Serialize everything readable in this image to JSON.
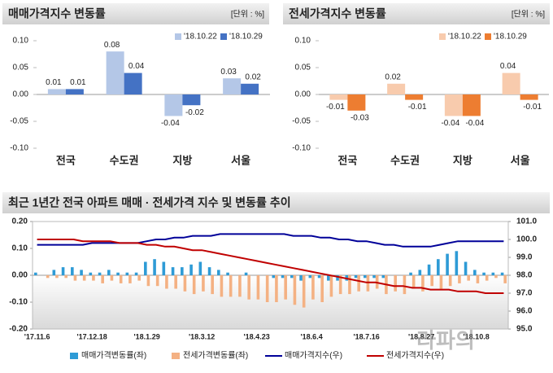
{
  "chart_data": [
    {
      "type": "bar",
      "title": "매매가격지수 변동률",
      "unit": "[단위 : %]",
      "categories": [
        "전국",
        "수도권",
        "지방",
        "서울"
      ],
      "series": [
        {
          "name": "'18.10.22",
          "color": "#b4c7e7",
          "values": [
            0.01,
            0.08,
            -0.04,
            0.03
          ]
        },
        {
          "name": "'18.10.29",
          "color": "#4472c4",
          "values": [
            0.01,
            0.04,
            -0.02,
            0.02
          ]
        }
      ],
      "ylim": [
        -0.1,
        0.1
      ],
      "yticks": [
        {
          "value": -0.1,
          "label": "-0.10"
        },
        {
          "value": -0.05,
          "label": "-0.05"
        },
        {
          "value": 0,
          "label": "0.00"
        },
        {
          "value": 0.05,
          "label": "0.05"
        },
        {
          "value": 0.1,
          "label": "0.10"
        }
      ]
    },
    {
      "type": "bar",
      "title": "전세가격지수 변동률",
      "unit": "[단위 : %]",
      "categories": [
        "전국",
        "수도권",
        "지방",
        "서울"
      ],
      "series": [
        {
          "name": "'18.10.22",
          "color": "#f8cbad",
          "values": [
            -0.01,
            0.02,
            -0.04,
            0.04
          ]
        },
        {
          "name": "'18.10.29",
          "color": "#ed7d31",
          "values": [
            -0.03,
            -0.01,
            -0.04,
            -0.01
          ]
        }
      ],
      "ylim": [
        -0.1,
        0.1
      ],
      "yticks": [
        {
          "value": -0.1,
          "label": "-0.10"
        },
        {
          "value": -0.05,
          "label": "-0.05"
        },
        {
          "value": 0,
          "label": "0.00"
        },
        {
          "value": 0.05,
          "label": "0.05"
        },
        {
          "value": 0.1,
          "label": "0.10"
        }
      ]
    },
    {
      "type": "combo",
      "title": "최근 1년간 전국 아파트 매매 · 전세가격 지수 및 변동률 추이",
      "categories": [
        "'17.11.6",
        null,
        null,
        null,
        null,
        null,
        "'17.12.18",
        null,
        null,
        null,
        null,
        null,
        "'18.1.29",
        null,
        null,
        null,
        null,
        null,
        "'18.3.12",
        null,
        null,
        null,
        null,
        null,
        "'18.4.23",
        null,
        null,
        null,
        null,
        null,
        "'18.6.4",
        null,
        null,
        null,
        null,
        null,
        "'18.7.16",
        null,
        null,
        null,
        null,
        null,
        "'18.8.27",
        null,
        null,
        null,
        null,
        null,
        "'18.10.8",
        null,
        null,
        null
      ],
      "series": [
        {
          "name": "매매가격변동률(좌)",
          "type": "bar",
          "color": "#2e9bd6",
          "values": [
            0.01,
            0.0,
            0.02,
            0.03,
            0.03,
            0.02,
            0.01,
            0.01,
            0.02,
            0.01,
            0.01,
            0.01,
            0.05,
            0.06,
            0.05,
            0.03,
            0.03,
            0.04,
            0.05,
            0.03,
            0.02,
            0.01,
            0.0,
            0.01,
            0.0,
            0.0,
            -0.01,
            -0.01,
            -0.01,
            -0.02,
            -0.01,
            -0.01,
            -0.02,
            -0.02,
            -0.02,
            -0.01,
            -0.01,
            -0.01,
            -0.01,
            0.0,
            0.0,
            0.01,
            0.02,
            0.04,
            0.06,
            0.08,
            0.09,
            0.05,
            0.02,
            0.01,
            0.01,
            0.01
          ]
        },
        {
          "name": "전세가격변동률(좌)",
          "type": "bar",
          "color": "#f4b183",
          "values": [
            0.0,
            -0.01,
            -0.01,
            -0.01,
            -0.02,
            -0.02,
            -0.02,
            -0.03,
            -0.02,
            -0.03,
            -0.03,
            -0.02,
            -0.04,
            -0.04,
            -0.05,
            -0.05,
            -0.06,
            -0.07,
            -0.06,
            -0.07,
            -0.08,
            -0.08,
            -0.08,
            -0.09,
            -0.09,
            -0.1,
            -0.1,
            -0.09,
            -0.11,
            -0.12,
            -0.09,
            -0.1,
            -0.08,
            -0.07,
            -0.07,
            -0.06,
            -0.06,
            -0.05,
            -0.07,
            -0.06,
            -0.07,
            -0.05,
            -0.06,
            -0.04,
            -0.05,
            -0.04,
            -0.03,
            -0.02,
            -0.03,
            -0.02,
            -0.01,
            -0.03
          ]
        },
        {
          "name": "매매가격지수(우)",
          "type": "line",
          "axis": "y2",
          "color": "#000099",
          "values": [
            99.7,
            99.7,
            99.7,
            99.7,
            99.7,
            99.7,
            99.8,
            99.8,
            99.8,
            99.8,
            99.8,
            99.8,
            99.9,
            100.0,
            100.0,
            100.1,
            100.1,
            100.2,
            100.2,
            100.2,
            100.3,
            100.3,
            100.3,
            100.3,
            100.3,
            100.3,
            100.3,
            100.3,
            100.2,
            100.2,
            100.2,
            100.1,
            100.1,
            100.0,
            100.0,
            99.9,
            99.9,
            99.8,
            99.7,
            99.7,
            99.6,
            99.6,
            99.6,
            99.6,
            99.7,
            99.8,
            99.9,
            99.9,
            99.9,
            99.9,
            99.9,
            99.9
          ]
        },
        {
          "name": "전세가격지수(우)",
          "type": "line",
          "axis": "y2",
          "color": "#c00000",
          "values": [
            100.0,
            100.0,
            100.0,
            100.0,
            100.0,
            99.9,
            99.9,
            99.9,
            99.9,
            99.8,
            99.8,
            99.8,
            99.7,
            99.7,
            99.6,
            99.6,
            99.5,
            99.4,
            99.4,
            99.3,
            99.2,
            99.1,
            99.0,
            98.9,
            98.8,
            98.7,
            98.6,
            98.5,
            98.4,
            98.3,
            98.2,
            98.1,
            98.0,
            97.9,
            97.8,
            97.7,
            97.6,
            97.6,
            97.5,
            97.4,
            97.4,
            97.3,
            97.3,
            97.2,
            97.2,
            97.2,
            97.1,
            97.1,
            97.1,
            97.0,
            97.0,
            97.0
          ]
        }
      ],
      "ylim": [
        -0.2,
        0.2
      ],
      "yticks": [
        {
          "value": -0.2,
          "label": "-0.20"
        },
        {
          "value": -0.1,
          "label": "-0.10"
        },
        {
          "value": 0,
          "label": "0.00"
        },
        {
          "value": 0.1,
          "label": "0.10"
        },
        {
          "value": 0.2,
          "label": "0.20"
        }
      ],
      "y2lim": [
        95,
        101
      ],
      "y2ticks": [
        {
          "value": 95,
          "label": "95.0"
        },
        {
          "value": 96,
          "label": "96.0"
        },
        {
          "value": 97,
          "label": "97.0"
        },
        {
          "value": 98,
          "label": "98.0"
        },
        {
          "value": 99,
          "label": "99.0"
        },
        {
          "value": 100,
          "label": "100.0"
        },
        {
          "value": 101,
          "label": "101.0"
        }
      ],
      "watermark": "라파의"
    }
  ]
}
